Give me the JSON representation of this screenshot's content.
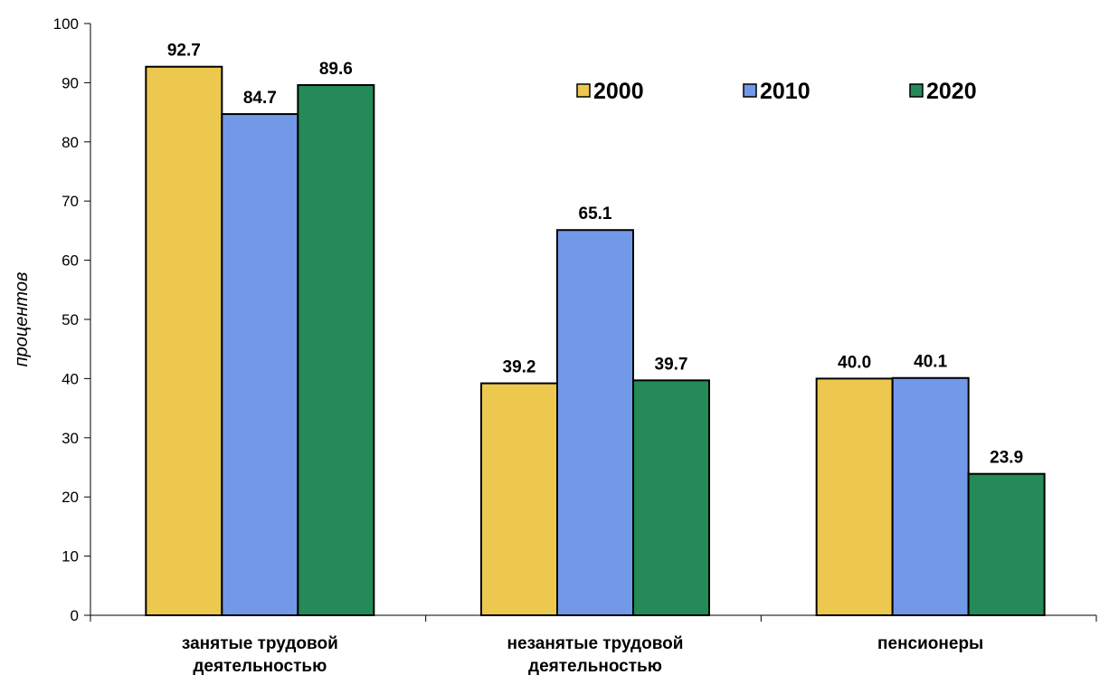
{
  "chart_data": {
    "type": "bar",
    "ylabel": "процентов",
    "ylim": [
      0,
      100
    ],
    "yticks": [
      0,
      10,
      20,
      30,
      40,
      50,
      60,
      70,
      80,
      90,
      100
    ],
    "grid": false,
    "legend": "top-right",
    "categories": [
      [
        "занятые трудовой",
        "деятельностью"
      ],
      [
        "незанятые трудовой",
        "деятельностью"
      ],
      [
        "пенсионеры"
      ]
    ],
    "series": [
      {
        "name": "2000",
        "color": "#EDC84F",
        "values": [
          92.7,
          39.2,
          40.0
        ],
        "labels": [
          "92.7",
          "39.2",
          "40.0"
        ]
      },
      {
        "name": "2010",
        "color": "#7299E8",
        "values": [
          84.7,
          65.1,
          40.1
        ],
        "labels": [
          "84.7",
          "65.1",
          "40.1"
        ]
      },
      {
        "name": "2020",
        "color": "#248A57",
        "values": [
          89.6,
          39.7,
          23.9
        ],
        "labels": [
          "89.6",
          "39.7",
          "23.9"
        ]
      }
    ]
  }
}
